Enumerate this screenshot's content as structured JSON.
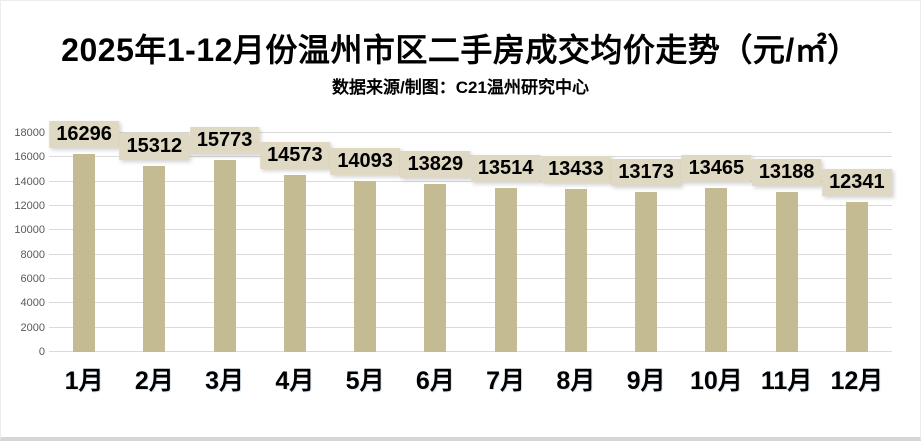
{
  "page": {
    "title": "2025年1-12月份温州市区二手房成交均价走势（元/㎡）",
    "subtitle": "数据来源/制图：C21温州研究中心"
  },
  "chart_data": {
    "type": "bar",
    "title": "2025年1-12月份温州市区二手房成交均价走势（元/㎡）",
    "subtitle": "数据来源/制图：C21温州研究中心",
    "categories": [
      "1月",
      "2月",
      "3月",
      "4月",
      "5月",
      "6月",
      "7月",
      "8月",
      "9月",
      "10月",
      "11月",
      "12月"
    ],
    "values": [
      16296,
      15312,
      15773,
      14573,
      14093,
      13829,
      13514,
      13433,
      13173,
      13465,
      13188,
      12341
    ],
    "data_labels_shown": true,
    "xlabel": "",
    "ylabel": "",
    "ylim": [
      0,
      18000
    ],
    "ytick_step": 2000,
    "yticks": [
      0,
      2000,
      4000,
      6000,
      8000,
      10000,
      12000,
      14000,
      16000,
      18000
    ],
    "grid": true,
    "legend": "none",
    "colors": {
      "bar": "#C5BB92",
      "value_label_bg": "#DFD9C3",
      "gridline": "#DADADA",
      "tick_text": "#595959",
      "title_text": "#000000"
    }
  }
}
